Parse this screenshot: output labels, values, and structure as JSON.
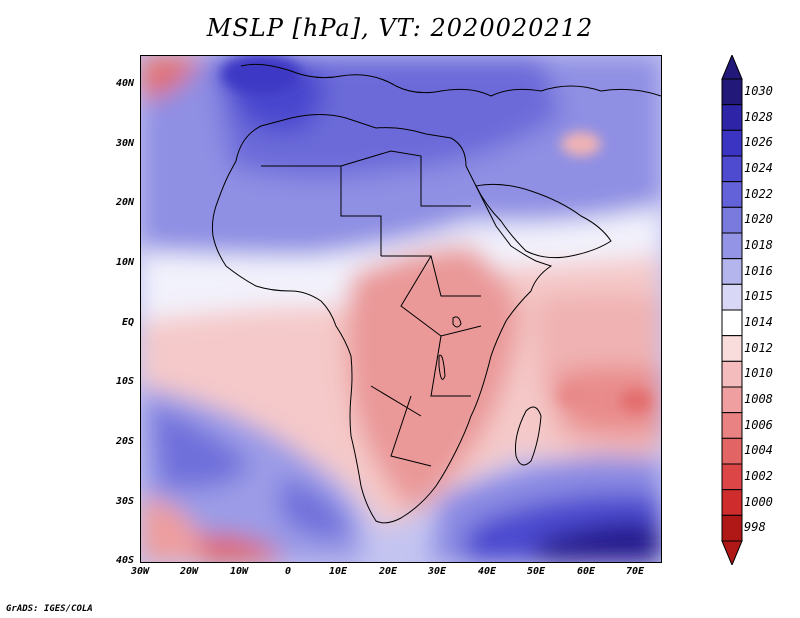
{
  "title": "MSLP [hPa], VT: 2020020212",
  "credit": "GrADS: IGES/COLA",
  "map": {
    "variable": "Mean sea level pressure",
    "units": "hPa",
    "valid_time": "2020020212",
    "lon_range": [
      -30,
      75
    ],
    "lat_range": [
      -40,
      45
    ],
    "x_tick_labels": [
      "30W",
      "20W",
      "10W",
      "0",
      "10E",
      "20E",
      "30E",
      "40E",
      "50E",
      "60E",
      "70E"
    ],
    "y_tick_labels": [
      "40N",
      "30N",
      "20N",
      "10N",
      "EQ",
      "10S",
      "20S",
      "30S",
      "40S"
    ]
  },
  "colorbar": {
    "labels": [
      "1030",
      "1028",
      "1026",
      "1024",
      "1022",
      "1020",
      "1018",
      "1016",
      "1015",
      "1014",
      "1012",
      "1010",
      "1008",
      "1006",
      "1004",
      "1002",
      "1000",
      "998"
    ],
    "colors": [
      "#21187a",
      "#2d24a8",
      "#3b33c2",
      "#4f4bd0",
      "#6462d8",
      "#7a7ade",
      "#9494e6",
      "#b5b5ee",
      "#d8d8f6",
      "#ffffff",
      "#f9dcdc",
      "#f4bcbc",
      "#ef9f9f",
      "#e98282",
      "#e36464",
      "#dc4646",
      "#cf2d2d",
      "#b01818"
    ]
  },
  "colors": {
    "high": "#2d24a8",
    "low": "#cf2d2d",
    "neutral": "#ffffff"
  }
}
